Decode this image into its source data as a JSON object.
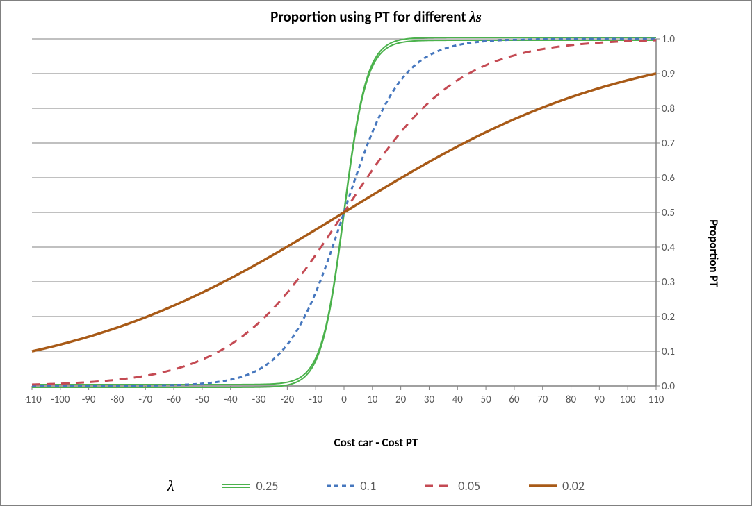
{
  "title_prefix": "Proportion using PT for different ",
  "title_lambda": "λs",
  "x_label": "Cost  car - Cost PT",
  "y_label": "Proportion PT",
  "legend_symbol": "λ",
  "chart": {
    "type": "line",
    "background_color": "#ffffff",
    "grid_color": "#808080",
    "axis_line_color": "#808080",
    "tick_label_color": "#595959",
    "tick_fontsize": 15,
    "title_fontsize": 21,
    "axis_label_fontsize": 17,
    "xlim": [
      -110,
      110
    ],
    "ylim": [
      0.0,
      1.0
    ],
    "xtick_step": 10,
    "ytick_step": 0.1,
    "series": [
      {
        "label": "0.25",
        "lambda": 0.25,
        "color": "#4bb24c",
        "style": "double",
        "width": 2,
        "dash": "none"
      },
      {
        "label": "0.1",
        "lambda": 0.1,
        "color": "#4677be",
        "style": "single",
        "width": 3,
        "dash": "6,5"
      },
      {
        "label": "0.05",
        "lambda": 0.05,
        "color": "#c44a53",
        "style": "single",
        "width": 3,
        "dash": "12,9"
      },
      {
        "label": "0.02",
        "lambda": 0.02,
        "color": "#a85a17",
        "style": "single",
        "width": 3.5,
        "dash": "none"
      }
    ]
  }
}
